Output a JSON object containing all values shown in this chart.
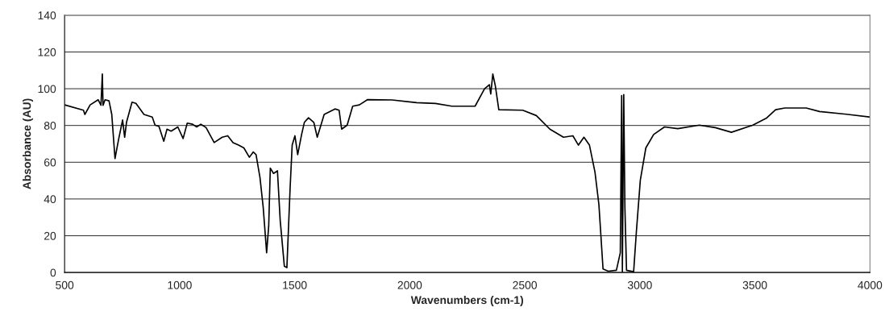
{
  "chart_data": {
    "type": "line",
    "xlabel": "Wavenumbers (cm-1)",
    "ylabel": "Absorbance (AU)",
    "xlim": [
      500,
      4000
    ],
    "xticks": [
      500,
      1000,
      1500,
      2000,
      2500,
      3000,
      3500,
      4000
    ],
    "ylim": [
      0,
      140
    ],
    "yticks": [
      0,
      20,
      40,
      60,
      80,
      100,
      120,
      140
    ],
    "grid": "y",
    "marker": "none",
    "line_style": "solid",
    "series": [
      {
        "color": "#000000",
        "x": [
          500,
          582,
          588,
          611,
          646,
          658,
          664,
          667,
          676,
          693,
          705,
          719,
          734,
          752,
          761,
          769,
          793,
          810,
          845,
          881,
          893,
          910,
          931,
          945,
          963,
          992,
          1015,
          1033,
          1056,
          1074,
          1092,
          1115,
          1150,
          1185,
          1209,
          1232,
          1256,
          1279,
          1303,
          1320,
          1332,
          1349,
          1363,
          1378,
          1387,
          1394,
          1408,
          1425,
          1437,
          1455,
          1466,
          1480,
          1489,
          1501,
          1513,
          1530,
          1542,
          1560,
          1583,
          1598,
          1628,
          1675,
          1693,
          1704,
          1728,
          1752,
          1781,
          1817,
          1923,
          2030,
          2112,
          2183,
          2284,
          2325,
          2346,
          2352,
          2361,
          2372,
          2387,
          2491,
          2550,
          2609,
          2668,
          2709,
          2733,
          2757,
          2781,
          2805,
          2822,
          2840,
          2863,
          2898,
          2915,
          2921,
          2924,
          2930,
          2935,
          2942,
          2973,
          2985,
          3002,
          3026,
          3060,
          3107,
          3165,
          3258,
          3328,
          3398,
          3491,
          3549,
          3590,
          3630,
          3723,
          3781,
          3898,
          3997
        ],
        "values": [
          91.2,
          88.3,
          86,
          91.2,
          94,
          91,
          108,
          91,
          94,
          93.4,
          86,
          62,
          72,
          83,
          73.6,
          81.7,
          92.7,
          92,
          86,
          84.6,
          80.2,
          79.5,
          71.4,
          78,
          76.9,
          79.2,
          72.9,
          81.3,
          80.7,
          79.2,
          80.7,
          78.8,
          70.7,
          73.6,
          74.4,
          70.7,
          69.3,
          67.8,
          62.7,
          65.6,
          64.1,
          51.7,
          35.6,
          10.7,
          25.3,
          56.8,
          53.9,
          55.3,
          28.3,
          3.4,
          2.6,
          45.8,
          69.3,
          74.4,
          64.1,
          75.1,
          81.7,
          84.2,
          81.7,
          73.6,
          86,
          89,
          88.3,
          78,
          80.2,
          90.5,
          91.2,
          94.1,
          93.9,
          92.4,
          92,
          90.5,
          90.5,
          100,
          102.2,
          97.1,
          108,
          101.5,
          88.6,
          88.3,
          85.4,
          78,
          73.6,
          74.4,
          69.3,
          73.6,
          69.3,
          54.6,
          37,
          1.9,
          0.7,
          1.2,
          10.7,
          96.3,
          0.4,
          96.8,
          35.6,
          1.2,
          0.4,
          22.4,
          50.2,
          67.8,
          75.1,
          79.2,
          78.3,
          80.2,
          78.8,
          76.3,
          80.2,
          83.9,
          88.6,
          89.5,
          89.5,
          87.6,
          86.1,
          84.6
        ]
      }
    ]
  }
}
